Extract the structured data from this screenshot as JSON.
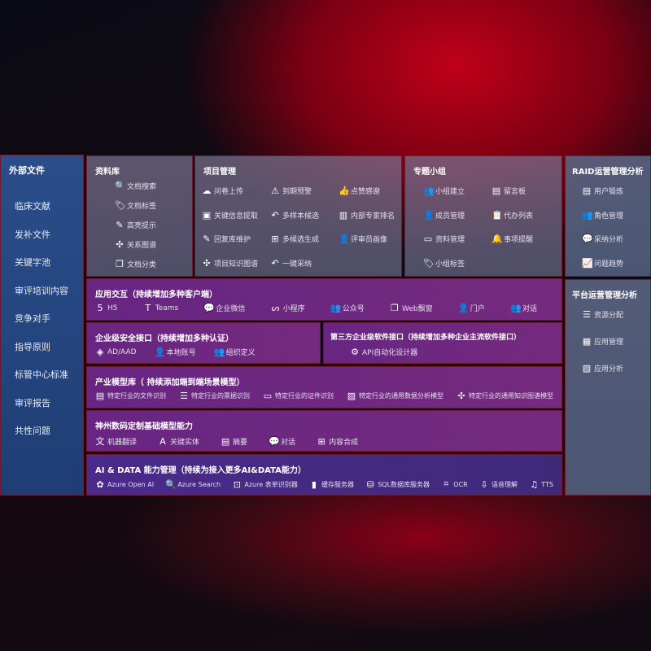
{
  "sidebar": {
    "title": "外部文件",
    "items": [
      "临床文献",
      "发补文件",
      "关键字池",
      "审评培训内容",
      "竞争对手",
      "指导原则",
      "标管中心标准",
      "审评报告",
      "共性问题"
    ]
  },
  "library": {
    "title": "资料库",
    "items": [
      {
        "label": "文档搜索",
        "icon": "doc-search-icon",
        "g": "🔍"
      },
      {
        "label": "文档标签",
        "icon": "tag-icon",
        "g": "🏷"
      },
      {
        "label": "高亮提示",
        "icon": "pen-icon",
        "g": "✎"
      },
      {
        "label": "关系图谱",
        "icon": "graph-icon",
        "g": "✣"
      },
      {
        "label": "文档分类",
        "icon": "doc-stack-icon",
        "g": "❐"
      }
    ]
  },
  "project": {
    "title": "项目管理",
    "items": [
      {
        "label": "问卷上传",
        "icon": "cloud-upload-icon",
        "g": "☁"
      },
      {
        "label": "到期预警",
        "icon": "alarm-icon",
        "g": "⚠"
      },
      {
        "label": "点赞感谢",
        "icon": "thumbs-up-icon",
        "g": "👍"
      },
      {
        "label": "关键信息提取",
        "icon": "window-icon",
        "g": "▣"
      },
      {
        "label": "多样本候选",
        "icon": "reply-icon",
        "g": "↶"
      },
      {
        "label": "内部专家排名",
        "icon": "ranking-icon",
        "g": "▥"
      },
      {
        "label": "回复库维护",
        "icon": "edit-icon",
        "g": "✎"
      },
      {
        "label": "多候选生成",
        "icon": "puzzle-icon",
        "g": "⊞"
      },
      {
        "label": "评审员画像",
        "icon": "user-icon",
        "g": "👤"
      },
      {
        "label": "项目知识图谱",
        "icon": "graph-icon",
        "g": "✣"
      },
      {
        "label": "一键采纳",
        "icon": "reply-icon",
        "g": "↶"
      }
    ]
  },
  "group": {
    "title": "专题小组",
    "items": [
      {
        "label": "小组建立",
        "icon": "group-icon",
        "g": "👥"
      },
      {
        "label": "留言板",
        "icon": "bbs-icon",
        "g": "▤"
      },
      {
        "label": "成员管理",
        "icon": "user-add-icon",
        "g": "👤"
      },
      {
        "label": "代办列表",
        "icon": "clipboard-icon",
        "g": "📋"
      },
      {
        "label": "资料管理",
        "icon": "folder-icon",
        "g": "▭"
      },
      {
        "label": "事项提醒",
        "icon": "bell-icon",
        "g": "🔔"
      },
      {
        "label": "小组标签",
        "icon": "tag-icon",
        "g": "🏷"
      }
    ]
  },
  "raid": {
    "title": "RAID运营管理分析",
    "items": [
      {
        "label": "用户锻炼",
        "icon": "id-card-icon",
        "g": "▤"
      },
      {
        "label": "角色管理",
        "icon": "users-icon",
        "g": "👥"
      },
      {
        "label": "采纳分析",
        "icon": "qa-icon",
        "g": "💬"
      },
      {
        "label": "问题趋势",
        "icon": "trend-icon",
        "g": "📈"
      }
    ]
  },
  "platform": {
    "title": "平台运营管理分析",
    "items": [
      {
        "label": "资源分配",
        "icon": "list-icon",
        "g": "☰"
      },
      {
        "label": "应用管理",
        "icon": "apps-icon",
        "g": "▦"
      },
      {
        "label": "应用分析",
        "icon": "chart-icon",
        "g": "▨"
      }
    ]
  },
  "interaction": {
    "title": "应用交互（持续增加多种客户端）",
    "items": [
      {
        "label": "H5",
        "icon": "html5-icon",
        "g": "5"
      },
      {
        "label": "Teams",
        "icon": "teams-icon",
        "g": "T"
      },
      {
        "label": "企业微信",
        "icon": "wecom-icon",
        "g": "💬"
      },
      {
        "label": "小程序",
        "icon": "miniprogram-icon",
        "g": "ᔕ"
      },
      {
        "label": "公众号",
        "icon": "public-account-icon",
        "g": "👥"
      },
      {
        "label": "Web飘窗",
        "icon": "window-icon",
        "g": "❐"
      },
      {
        "label": "门户",
        "icon": "portal-icon",
        "g": "👤"
      },
      {
        "label": "对话",
        "icon": "chat-users-icon",
        "g": "👥"
      }
    ]
  },
  "security": {
    "title": "企业级安全接口（持续增加多种认证）",
    "items": [
      {
        "label": "AD/AAD",
        "icon": "diamond-icon",
        "g": "◈"
      },
      {
        "label": "本地账号",
        "icon": "user-lock-icon",
        "g": "👤"
      },
      {
        "label": "组织定义",
        "icon": "org-icon",
        "g": "👥"
      }
    ]
  },
  "thirdparty": {
    "title": "第三方企业级软件接口（持续增加多种企业主流软件接口）",
    "items": [
      {
        "label": "API自动化设计器",
        "icon": "gear-icon",
        "g": "⚙"
      }
    ]
  },
  "industry": {
    "title": "产业模型库（ 持续添加端到端场景模型）",
    "items": [
      {
        "label": "特定行业的文件识别",
        "icon": "file-icon",
        "g": "▤"
      },
      {
        "label": "特定行业的票据识别",
        "icon": "receipt-icon",
        "g": "☰"
      },
      {
        "label": "特定行业的证件识别",
        "icon": "id-card-icon",
        "g": "▭"
      },
      {
        "label": "特定行业的通用数据分析模型",
        "icon": "chart-icon",
        "g": "▨"
      },
      {
        "label": "特定行业的通用知识图谱模型",
        "icon": "graph-icon",
        "g": "✣"
      }
    ]
  },
  "foundation": {
    "title": "神州数码定制基础模型能力",
    "items": [
      {
        "label": "机器翻译",
        "icon": "translate-icon",
        "g": "文"
      },
      {
        "label": "关键实体",
        "icon": "entity-icon",
        "g": "A"
      },
      {
        "label": "摘要",
        "icon": "document-icon",
        "g": "▤"
      },
      {
        "label": "对话",
        "icon": "chat-icon",
        "g": "💬"
      },
      {
        "label": "内容合成",
        "icon": "puzzle-icon",
        "g": "⊞"
      }
    ]
  },
  "aidata": {
    "title": "AI & DATA 能力管理（持续为接入更多AI&DATA能力）",
    "items": [
      {
        "label": "Azure Open AI",
        "icon": "openai-icon",
        "g": "✿"
      },
      {
        "label": "Azure Search",
        "icon": "search-doc-icon",
        "g": "🔍"
      },
      {
        "label": "Azure 表单识别器",
        "icon": "form-icon",
        "g": "⊡"
      },
      {
        "label": "缓存服务器",
        "icon": "server-icon",
        "g": "▮"
      },
      {
        "label": "SQL数据库服务器",
        "icon": "database-icon",
        "g": "⛁"
      },
      {
        "label": "OCR",
        "icon": "ocr-icon",
        "g": "⌗"
      },
      {
        "label": "语音理解",
        "icon": "voice-icon",
        "g": "⇩"
      },
      {
        "label": "TTS",
        "icon": "tts-icon",
        "g": "♫"
      }
    ]
  }
}
